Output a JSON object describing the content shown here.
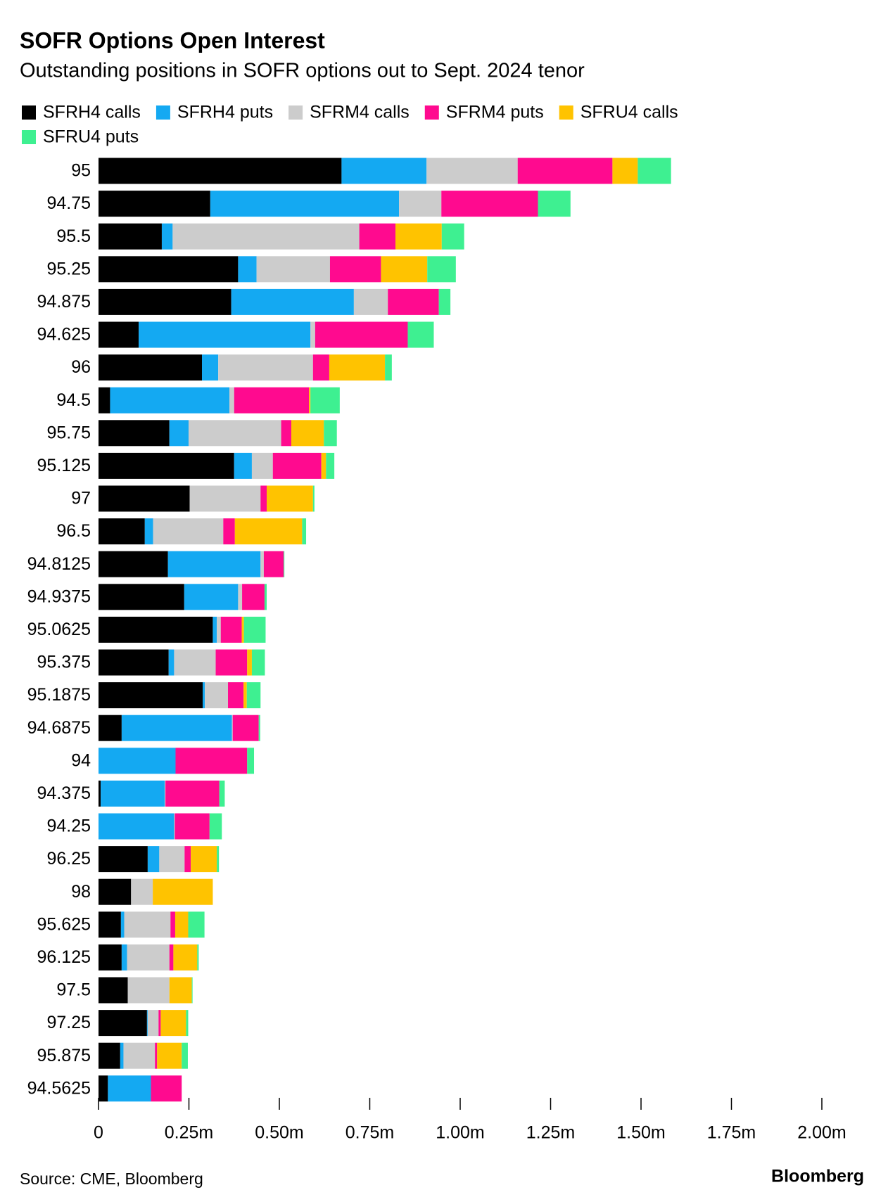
{
  "chart_data": {
    "type": "stacked-barh",
    "title": "SOFR Options Open Interest",
    "subtitle": "Outstanding positions in SOFR options out to Sept. 2024 tenor",
    "source": "Source: CME, Bloomberg",
    "logo": "Bloomberg",
    "categories": [
      "95",
      "94.75",
      "95.5",
      "95.25",
      "94.875",
      "94.625",
      "96",
      "94.5",
      "95.75",
      "95.125",
      "97",
      "96.5",
      "94.8125",
      "94.9375",
      "95.0625",
      "95.375",
      "95.1875",
      "94.6875",
      "94",
      "94.375",
      "94.25",
      "96.25",
      "98",
      "95.625",
      "96.125",
      "97.5",
      "97.25",
      "95.875",
      "94.5625"
    ],
    "series": [
      {
        "name": "SFRH4 calls",
        "color": "#000000",
        "values": [
          672000,
          309000,
          175000,
          386000,
          367000,
          111000,
          286000,
          32000,
          196000,
          375000,
          252000,
          128000,
          192000,
          237000,
          316000,
          194000,
          288000,
          64000,
          0,
          6000,
          0,
          136000,
          90000,
          62000,
          64000,
          81000,
          134000,
          60000,
          26000
        ]
      },
      {
        "name": "SFRH4 puts",
        "color": "#14a9f2",
        "values": [
          235000,
          522000,
          30000,
          51000,
          339000,
          475000,
          45000,
          330000,
          53000,
          49000,
          0,
          23000,
          256000,
          149000,
          11000,
          15000,
          6000,
          305000,
          213000,
          177000,
          209000,
          32000,
          0,
          9000,
          15000,
          0,
          2000,
          9000,
          119000
        ]
      },
      {
        "name": "SFRM4 calls",
        "color": "#cccccc",
        "values": [
          252000,
          117000,
          516000,
          203000,
          94000,
          13000,
          262000,
          13000,
          256000,
          58000,
          196000,
          194000,
          9000,
          11000,
          11000,
          115000,
          64000,
          2000,
          0,
          2000,
          2000,
          70000,
          60000,
          128000,
          117000,
          115000,
          30000,
          87000,
          0
        ]
      },
      {
        "name": "SFRM4 puts",
        "color": "#ff0a8f",
        "values": [
          262000,
          267000,
          100000,
          141000,
          141000,
          256000,
          45000,
          207000,
          28000,
          134000,
          17000,
          32000,
          55000,
          62000,
          58000,
          87000,
          43000,
          72000,
          198000,
          149000,
          96000,
          17000,
          0,
          13000,
          11000,
          0,
          6000,
          6000,
          85000
        ]
      },
      {
        "name": "SFRU4 calls",
        "color": "#ffc300",
        "values": [
          70000,
          0,
          128000,
          128000,
          0,
          0,
          154000,
          4000,
          90000,
          13000,
          128000,
          186000,
          0,
          0,
          6000,
          13000,
          9000,
          0,
          0,
          0,
          0,
          72000,
          166000,
          36000,
          66000,
          62000,
          70000,
          68000,
          0
        ]
      },
      {
        "name": "SFRU4 puts",
        "color": "#3ef091",
        "values": [
          92000,
          90000,
          62000,
          79000,
          32000,
          72000,
          19000,
          81000,
          36000,
          23000,
          4000,
          11000,
          2000,
          6000,
          60000,
          36000,
          38000,
          4000,
          19000,
          15000,
          34000,
          6000,
          0,
          45000,
          4000,
          2000,
          6000,
          17000,
          0
        ]
      }
    ],
    "xlim": [
      0,
      2000000
    ],
    "xticks": [
      0,
      {
        "value": 250000,
        "label": "0.25m"
      },
      {
        "value": 500000,
        "label": "0.50m"
      },
      {
        "value": 750000,
        "label": "0.75m"
      },
      {
        "value": 1000000,
        "label": "1.00m"
      },
      {
        "value": 1250000,
        "label": "1.25m"
      },
      {
        "value": 1500000,
        "label": "1.50m"
      },
      {
        "value": 1750000,
        "label": "1.75m"
      },
      {
        "value": 2000000,
        "label": "2.00m"
      }
    ]
  }
}
